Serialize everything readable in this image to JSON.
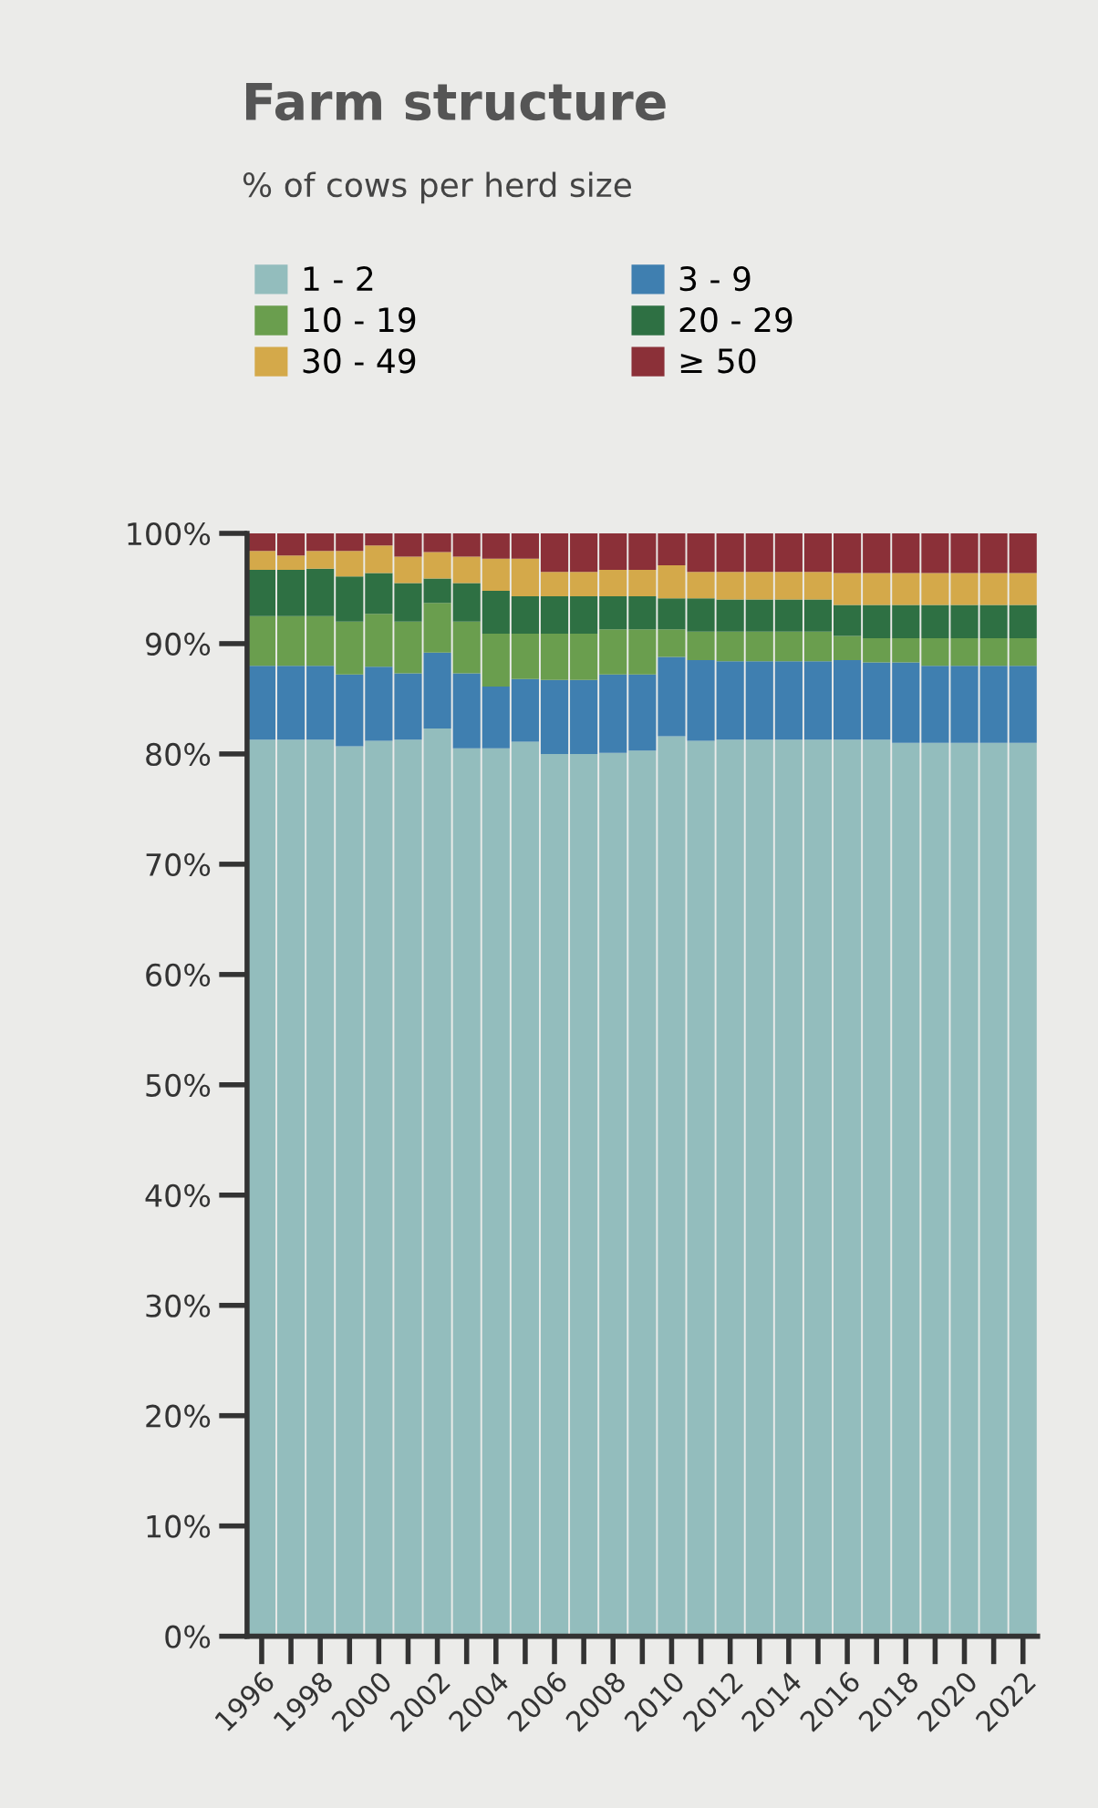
{
  "chart_data": {
    "type": "bar",
    "stacked": true,
    "title": "Farm structure",
    "subtitle": "% of cows per herd size",
    "categories": [
      "1996",
      null,
      "1998",
      null,
      "2000",
      null,
      "2002",
      null,
      "2004",
      null,
      "2006",
      null,
      "2008",
      null,
      "2010",
      null,
      "2012",
      null,
      "2014",
      null,
      "2016",
      null,
      "2018",
      null,
      "2020",
      null,
      "2022"
    ],
    "series": [
      {
        "name": "1 - 2",
        "color": "#93bdbd",
        "values": [
          81.3,
          81.3,
          81.3,
          80.7,
          81.2,
          81.3,
          82.3,
          80.5,
          80.5,
          81.1,
          80.0,
          80.0,
          80.1,
          80.3,
          81.6,
          81.2,
          81.3,
          81.3,
          81.3,
          81.3,
          81.3,
          81.3,
          81.0,
          81.0,
          81.0,
          81.0,
          81.0
        ]
      },
      {
        "name": "3 - 9",
        "color": "#3f7fb0",
        "values": [
          6.7,
          6.7,
          6.7,
          6.5,
          6.7,
          6.0,
          6.9,
          6.8,
          5.6,
          5.7,
          6.7,
          6.7,
          7.1,
          6.9,
          7.2,
          7.3,
          7.1,
          7.1,
          7.1,
          7.1,
          7.2,
          7.0,
          7.3,
          7.0,
          7.0,
          7.0,
          7.0
        ]
      },
      {
        "name": "10 - 19",
        "color": "#6a9e4e",
        "values": [
          4.5,
          4.5,
          4.5,
          4.8,
          4.8,
          4.7,
          4.5,
          4.7,
          4.8,
          4.1,
          4.2,
          4.2,
          4.1,
          4.1,
          2.5,
          2.6,
          2.7,
          2.7,
          2.7,
          2.7,
          2.2,
          2.2,
          2.2,
          2.5,
          2.5,
          2.5,
          2.5
        ]
      },
      {
        "name": "20 - 29",
        "color": "#2e7043",
        "values": [
          4.2,
          4.2,
          4.3,
          4.1,
          3.7,
          3.5,
          2.2,
          3.5,
          3.9,
          3.4,
          3.4,
          3.4,
          3.0,
          3.0,
          2.8,
          3.0,
          2.9,
          2.9,
          2.9,
          2.9,
          2.8,
          3.0,
          3.0,
          3.0,
          3.0,
          3.0,
          3.0
        ]
      },
      {
        "name": "30 - 49",
        "color": "#d4a94a",
        "values": [
          1.7,
          1.3,
          1.6,
          2.3,
          2.5,
          2.4,
          2.4,
          2.4,
          2.9,
          3.4,
          2.2,
          2.2,
          2.4,
          2.4,
          3.0,
          2.4,
          2.5,
          2.5,
          2.5,
          2.5,
          2.9,
          2.9,
          2.9,
          2.9,
          2.9,
          2.9,
          2.9
        ]
      },
      {
        "name": "≥ 50",
        "color": "#8b3038",
        "values": [
          1.6,
          2.0,
          1.6,
          1.6,
          1.1,
          2.1,
          1.7,
          2.1,
          2.3,
          2.3,
          3.5,
          3.5,
          3.3,
          3.3,
          2.9,
          3.5,
          3.5,
          3.5,
          3.5,
          3.5,
          3.6,
          3.6,
          3.6,
          3.6,
          3.6,
          3.6,
          3.6
        ]
      }
    ],
    "ylim": [
      0,
      100
    ],
    "yticks": [
      {
        "value": 0,
        "label": "0%"
      },
      {
        "value": 10,
        "label": "10%"
      },
      {
        "value": 20,
        "label": "20%"
      },
      {
        "value": 30,
        "label": "30%"
      },
      {
        "value": 40,
        "label": "40%"
      },
      {
        "value": 50,
        "label": "50%"
      },
      {
        "value": 60,
        "label": "60%"
      },
      {
        "value": 70,
        "label": "70%"
      },
      {
        "value": 80,
        "label": "80%"
      },
      {
        "value": 90,
        "label": "90%"
      },
      {
        "value": 100,
        "label": "100%"
      }
    ],
    "grid": false,
    "legend": "top"
  }
}
